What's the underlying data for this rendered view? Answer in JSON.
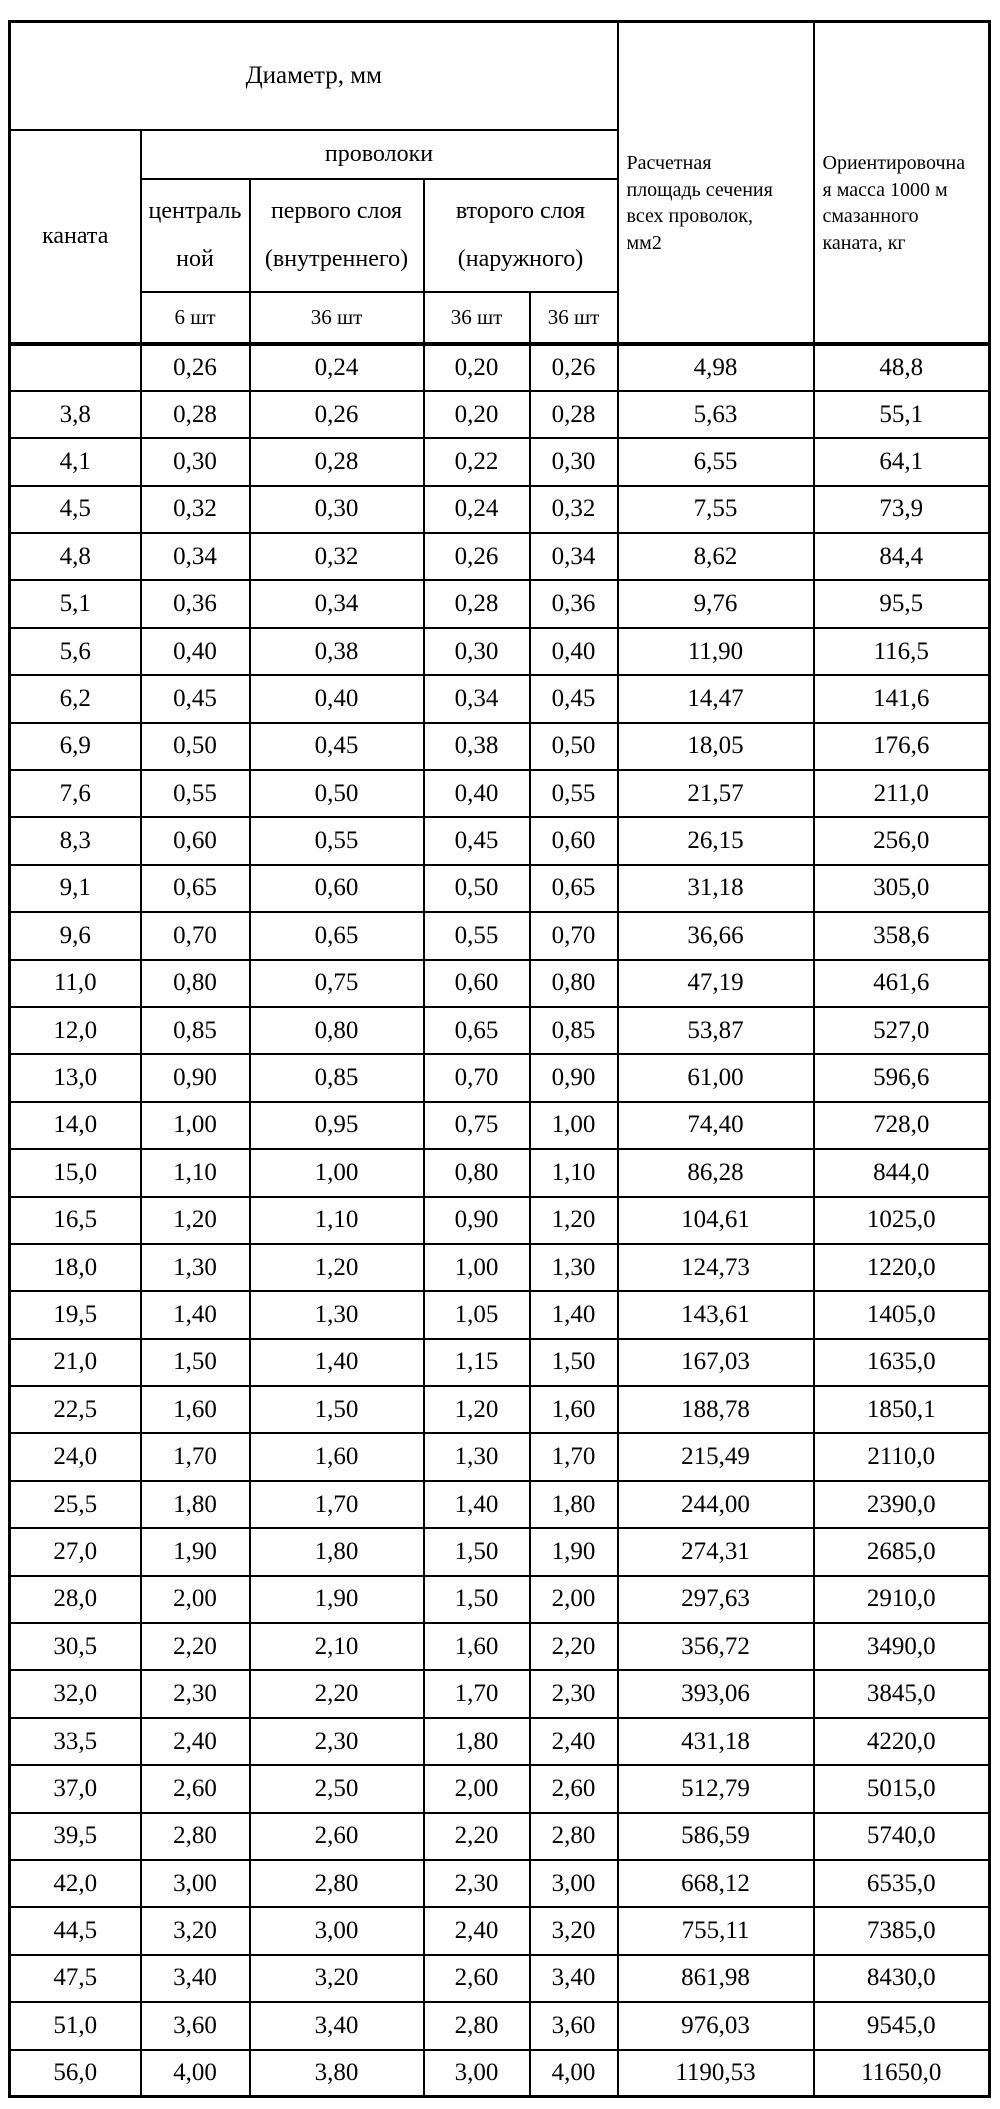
{
  "page": {
    "background": "#ffffff",
    "text_color": "#000000",
    "border_color": "#000000"
  },
  "table": {
    "header": {
      "diameter_group": "Диаметр, мм",
      "rope_col": "каната",
      "wires_group": "проволоки",
      "central_col": "централь\nной",
      "first_layer_col": "первого слоя\n(внутреннего)",
      "second_layer_col": "второго слоя\n(наружного)",
      "counts": [
        "6 шт",
        "36 шт",
        "36 шт",
        "36 шт"
      ],
      "area_col": "Расчетная\nплощадь сечения\nвсех проволок,\nмм2",
      "mass_col": "Ориентировочна\nя масса 1000 м\nсмазанного\nканата, кг"
    },
    "rows": [
      [
        "",
        "0,26",
        "0,24",
        "0,20",
        "0,26",
        "4,98",
        "48,8"
      ],
      [
        "3,8",
        "0,28",
        "0,26",
        "0,20",
        "0,28",
        "5,63",
        "55,1"
      ],
      [
        "4,1",
        "0,30",
        "0,28",
        "0,22",
        "0,30",
        "6,55",
        "64,1"
      ],
      [
        "4,5",
        "0,32",
        "0,30",
        "0,24",
        "0,32",
        "7,55",
        "73,9"
      ],
      [
        "4,8",
        "0,34",
        "0,32",
        "0,26",
        "0,34",
        "8,62",
        "84,4"
      ],
      [
        "5,1",
        "0,36",
        "0,34",
        "0,28",
        "0,36",
        "9,76",
        "95,5"
      ],
      [
        "5,6",
        "0,40",
        "0,38",
        "0,30",
        "0,40",
        "11,90",
        "116,5"
      ],
      [
        "6,2",
        "0,45",
        "0,40",
        "0,34",
        "0,45",
        "14,47",
        "141,6"
      ],
      [
        "6,9",
        "0,50",
        "0,45",
        "0,38",
        "0,50",
        "18,05",
        "176,6"
      ],
      [
        "7,6",
        "0,55",
        "0,50",
        "0,40",
        "0,55",
        "21,57",
        "211,0"
      ],
      [
        "8,3",
        "0,60",
        "0,55",
        "0,45",
        "0,60",
        "26,15",
        "256,0"
      ],
      [
        "9,1",
        "0,65",
        "0,60",
        "0,50",
        "0,65",
        "31,18",
        "305,0"
      ],
      [
        "9,6",
        "0,70",
        "0,65",
        "0,55",
        "0,70",
        "36,66",
        "358,6"
      ],
      [
        "11,0",
        "0,80",
        "0,75",
        "0,60",
        "0,80",
        "47,19",
        "461,6"
      ],
      [
        "12,0",
        "0,85",
        "0,80",
        "0,65",
        "0,85",
        "53,87",
        "527,0"
      ],
      [
        "13,0",
        "0,90",
        "0,85",
        "0,70",
        "0,90",
        "61,00",
        "596,6"
      ],
      [
        "14,0",
        "1,00",
        "0,95",
        "0,75",
        "1,00",
        "74,40",
        "728,0"
      ],
      [
        "15,0",
        "1,10",
        "1,00",
        "0,80",
        "1,10",
        "86,28",
        "844,0"
      ],
      [
        "16,5",
        "1,20",
        "1,10",
        "0,90",
        "1,20",
        "104,61",
        "1025,0"
      ],
      [
        "18,0",
        "1,30",
        "1,20",
        "1,00",
        "1,30",
        "124,73",
        "1220,0"
      ],
      [
        "19,5",
        "1,40",
        "1,30",
        "1,05",
        "1,40",
        "143,61",
        "1405,0"
      ],
      [
        "21,0",
        "1,50",
        "1,40",
        "1,15",
        "1,50",
        "167,03",
        "1635,0"
      ],
      [
        "22,5",
        "1,60",
        "1,50",
        "1,20",
        "1,60",
        "188,78",
        "1850,1"
      ],
      [
        "24,0",
        "1,70",
        "1,60",
        "1,30",
        "1,70",
        "215,49",
        "2110,0"
      ],
      [
        "25,5",
        "1,80",
        "1,70",
        "1,40",
        "1,80",
        "244,00",
        "2390,0"
      ],
      [
        "27,0",
        "1,90",
        "1,80",
        "1,50",
        "1,90",
        "274,31",
        "2685,0"
      ],
      [
        "28,0",
        "2,00",
        "1,90",
        "1,50",
        "2,00",
        "297,63",
        "2910,0"
      ],
      [
        "30,5",
        "2,20",
        "2,10",
        "1,60",
        "2,20",
        "356,72",
        "3490,0"
      ],
      [
        "32,0",
        "2,30",
        "2,20",
        "1,70",
        "2,30",
        "393,06",
        "3845,0"
      ],
      [
        "33,5",
        "2,40",
        "2,30",
        "1,80",
        "2,40",
        "431,18",
        "4220,0"
      ],
      [
        "37,0",
        "2,60",
        "2,50",
        "2,00",
        "2,60",
        "512,79",
        "5015,0"
      ],
      [
        "39,5",
        "2,80",
        "2,60",
        "2,20",
        "2,80",
        "586,59",
        "5740,0"
      ],
      [
        "42,0",
        "3,00",
        "2,80",
        "2,30",
        "3,00",
        "668,12",
        "6535,0"
      ],
      [
        "44,5",
        "3,20",
        "3,00",
        "2,40",
        "3,20",
        "755,11",
        "7385,0"
      ],
      [
        "47,5",
        "3,40",
        "3,20",
        "2,60",
        "3,40",
        "861,98",
        "8430,0"
      ],
      [
        "51,0",
        "3,60",
        "3,40",
        "2,80",
        "3,60",
        "976,03",
        "9545,0"
      ],
      [
        "56,0",
        "4,00",
        "3,80",
        "3,00",
        "4,00",
        "1190,53",
        "11650,0"
      ]
    ]
  }
}
